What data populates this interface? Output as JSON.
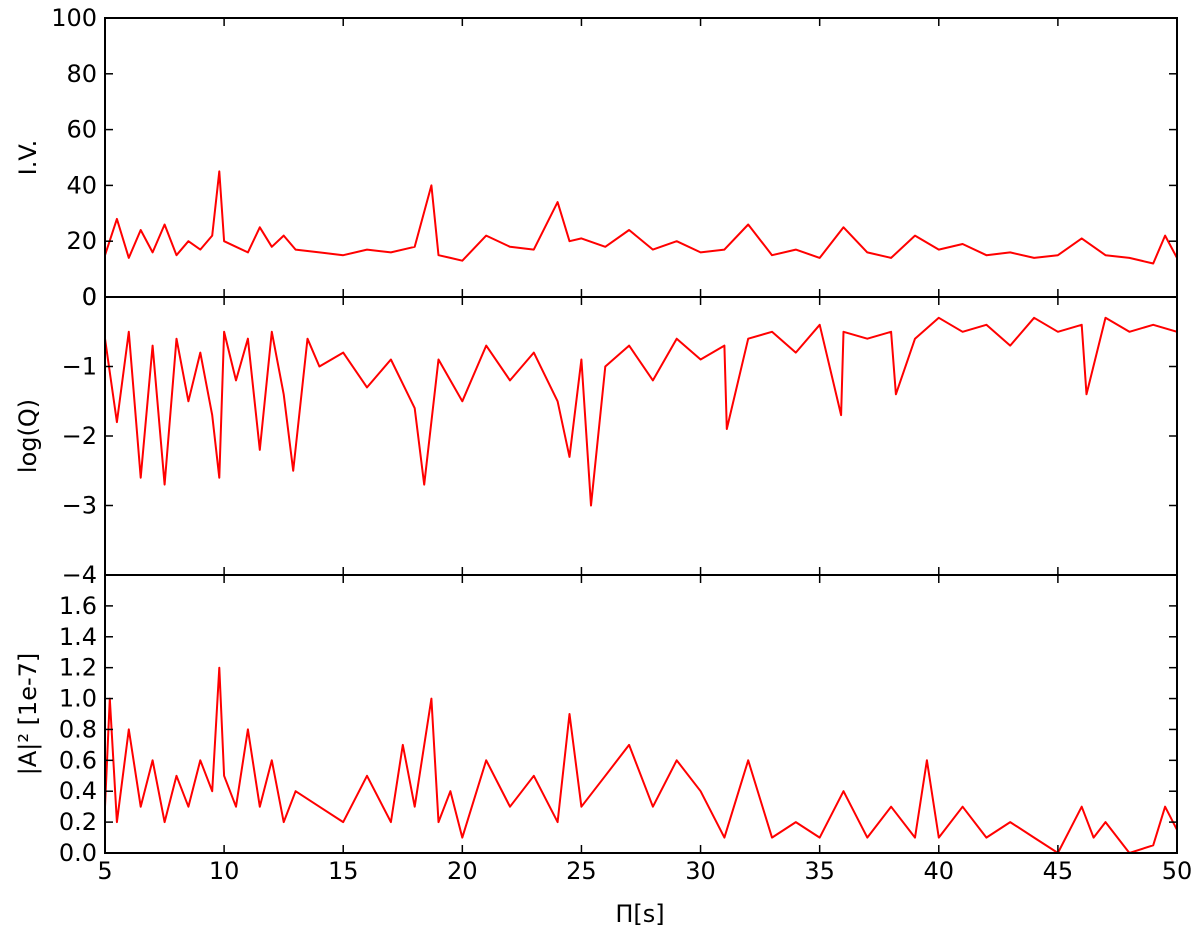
{
  "colors": {
    "series": "#ff0000",
    "axes": "#000000",
    "background": "#ffffff"
  },
  "chart_data": [
    {
      "type": "line",
      "ylabel": "I.V.",
      "xlim": [
        5,
        50
      ],
      "ylim": [
        0,
        100
      ],
      "xticks": [
        5,
        10,
        15,
        20,
        25,
        30,
        35,
        40,
        45,
        50
      ],
      "yticks": [
        0,
        20,
        40,
        60,
        80,
        100
      ],
      "ytick_labels": [
        "0",
        "20",
        "40",
        "60",
        "80",
        "100"
      ],
      "grid": false,
      "series": [
        {
          "x": [
            5,
            5.5,
            6,
            6.5,
            7,
            7.5,
            8,
            8.5,
            9,
            9.5,
            9.8,
            10,
            10.5,
            11,
            11.5,
            12,
            12.5,
            13,
            14,
            15,
            16,
            17,
            18,
            18.7,
            19,
            19.5,
            20,
            21,
            22,
            23,
            24,
            24.5,
            25,
            26,
            27,
            28,
            29,
            30,
            31,
            32,
            33,
            34,
            35,
            36,
            37,
            38,
            39,
            40,
            41,
            42,
            43,
            44,
            45,
            46,
            47,
            48,
            49,
            49.5,
            50
          ],
          "y": [
            15,
            28,
            14,
            24,
            16,
            26,
            15,
            20,
            17,
            22,
            45,
            20,
            18,
            16,
            25,
            18,
            22,
            17,
            16,
            15,
            17,
            16,
            18,
            40,
            15,
            14,
            13,
            22,
            18,
            17,
            34,
            20,
            21,
            18,
            24,
            17,
            20,
            16,
            17,
            26,
            15,
            17,
            14,
            25,
            16,
            14,
            22,
            17,
            19,
            15,
            16,
            14,
            15,
            21,
            15,
            14,
            12,
            22,
            14
          ]
        }
      ]
    },
    {
      "type": "line",
      "ylabel": "log(Q)",
      "xlim": [
        5,
        50
      ],
      "ylim": [
        -4,
        0
      ],
      "xticks": [
        5,
        10,
        15,
        20,
        25,
        30,
        35,
        40,
        45,
        50
      ],
      "yticks": [
        -4,
        -3,
        -2,
        -1,
        0
      ],
      "ytick_labels": [
        "−4",
        "−3",
        "−2",
        "−1",
        "0"
      ],
      "grid": false,
      "series": [
        {
          "x": [
            5,
            5.5,
            6,
            6.5,
            7,
            7.5,
            8,
            8.5,
            9,
            9.5,
            9.8,
            10,
            10.5,
            11,
            11.5,
            12,
            12.5,
            12.9,
            13.5,
            14,
            15,
            16,
            17,
            18,
            18.4,
            19,
            20,
            21,
            22,
            23,
            24,
            24.5,
            25,
            25.4,
            26,
            27,
            28,
            29,
            30,
            31,
            31.1,
            32,
            33,
            34,
            35,
            35.9,
            36,
            37,
            38,
            38.2,
            39,
            40,
            41,
            42,
            43,
            44,
            45,
            46,
            46.2,
            47,
            48,
            49,
            50
          ],
          "y": [
            -0.6,
            -1.8,
            -0.5,
            -2.6,
            -0.7,
            -2.7,
            -0.6,
            -1.5,
            -0.8,
            -1.7,
            -2.6,
            -0.5,
            -1.2,
            -0.6,
            -2.2,
            -0.5,
            -1.4,
            -2.5,
            -0.6,
            -1.0,
            -0.8,
            -1.3,
            -0.9,
            -1.6,
            -2.7,
            -0.9,
            -1.5,
            -0.7,
            -1.2,
            -0.8,
            -1.5,
            -2.3,
            -0.9,
            -3.0,
            -1.0,
            -0.7,
            -1.2,
            -0.6,
            -0.9,
            -0.7,
            -1.9,
            -0.6,
            -0.5,
            -0.8,
            -0.4,
            -1.7,
            -0.5,
            -0.6,
            -0.5,
            -1.4,
            -0.6,
            -0.3,
            -0.5,
            -0.4,
            -0.7,
            -0.3,
            -0.5,
            -0.4,
            -1.4,
            -0.3,
            -0.5,
            -0.4,
            -0.5
          ]
        }
      ]
    },
    {
      "type": "line",
      "xlabel": "Π[s]",
      "ylabel": "|A|² [1e-7]",
      "xlim": [
        5,
        50
      ],
      "ylim": [
        0,
        1.8
      ],
      "xticks": [
        5,
        10,
        15,
        20,
        25,
        30,
        35,
        40,
        45,
        50
      ],
      "xtick_labels": [
        "5",
        "10",
        "15",
        "20",
        "25",
        "30",
        "35",
        "40",
        "45",
        "50"
      ],
      "yticks": [
        0,
        0.2,
        0.4,
        0.6,
        0.8,
        1.0,
        1.2,
        1.4,
        1.6
      ],
      "ytick_labels": [
        "0.0",
        "0.2",
        "0.4",
        "0.6",
        "0.8",
        "1.0",
        "1.2",
        "1.4",
        "1.6"
      ],
      "grid": false,
      "series": [
        {
          "x": [
            5,
            5.2,
            5.5,
            6,
            6.5,
            7,
            7.5,
            8,
            8.5,
            9,
            9.5,
            9.8,
            10,
            10.5,
            11,
            11.5,
            12,
            12.5,
            13,
            14,
            15,
            16,
            17,
            17.5,
            18,
            18.7,
            19,
            19.5,
            20,
            21,
            22,
            23,
            24,
            24.5,
            25,
            26,
            27,
            28,
            29,
            30,
            31,
            32,
            33,
            34,
            35,
            36,
            37,
            38,
            39,
            39.5,
            40,
            41,
            42,
            43,
            44,
            45,
            46,
            46.5,
            47,
            48,
            49,
            49.5,
            50
          ],
          "y": [
            0.3,
            1.0,
            0.2,
            0.8,
            0.3,
            0.6,
            0.2,
            0.5,
            0.3,
            0.6,
            0.4,
            1.2,
            0.5,
            0.3,
            0.8,
            0.3,
            0.6,
            0.2,
            0.4,
            0.3,
            0.2,
            0.5,
            0.2,
            0.7,
            0.3,
            1.0,
            0.2,
            0.4,
            0.1,
            0.6,
            0.3,
            0.5,
            0.2,
            0.9,
            0.3,
            0.5,
            0.7,
            0.3,
            0.6,
            0.4,
            0.1,
            0.6,
            0.1,
            0.2,
            0.1,
            0.4,
            0.1,
            0.3,
            0.1,
            0.6,
            0.1,
            0.3,
            0.1,
            0.2,
            0.1,
            0.0,
            0.3,
            0.1,
            0.2,
            0.0,
            0.05,
            0.3,
            0.15
          ]
        }
      ]
    }
  ]
}
